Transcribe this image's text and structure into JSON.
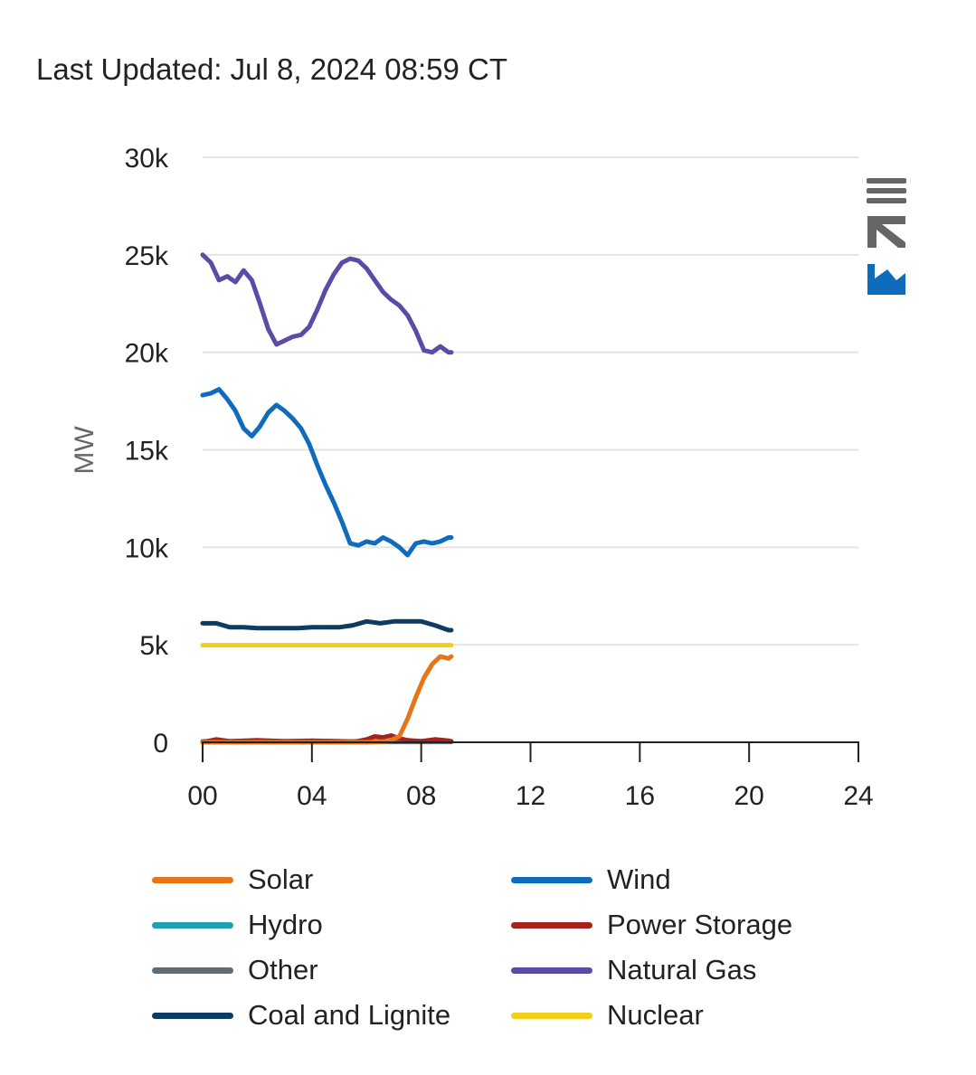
{
  "header": {
    "last_updated": "Last Updated: Jul 8, 2024 08:59 CT"
  },
  "colors": {
    "solar": "#e8741a",
    "wind": "#0f6cbd",
    "hydro": "#1fa0b4",
    "power_storage": "#a5231c",
    "other": "#5f6c75",
    "natural_gas": "#5b4ba6",
    "coal_and_lignite": "#0c3c62",
    "nuclear": "#f2cf1a",
    "logo_gray": "#666666",
    "logo_blue": "#0f6cbd"
  },
  "logo": {
    "icon": "ercot-logo-icon"
  },
  "chart_data": {
    "type": "line",
    "title": "",
    "xlabel": "",
    "ylabel": "MW",
    "xlim": [
      0,
      24
    ],
    "ylim": [
      0,
      30000
    ],
    "x_ticks": [
      "00",
      "04",
      "08",
      "12",
      "16",
      "20",
      "24"
    ],
    "y_ticks": [
      "0",
      "5k",
      "10k",
      "15k",
      "20k",
      "25k",
      "30k"
    ],
    "grid": true,
    "legend_position": "bottom",
    "series": [
      {
        "name": "Solar",
        "color_key": "solar",
        "x": [
          0,
          1,
          2,
          3,
          4,
          5,
          6,
          6.8,
          7.2,
          7.5,
          7.8,
          8.1,
          8.4,
          8.7,
          9.0,
          9.1
        ],
        "values": [
          0,
          0,
          0,
          0,
          0,
          0,
          0,
          50,
          300,
          1200,
          2300,
          3300,
          4000,
          4400,
          4300,
          4400
        ]
      },
      {
        "name": "Wind",
        "color_key": "wind",
        "x": [
          0,
          0.3,
          0.6,
          0.9,
          1.2,
          1.5,
          1.8,
          2.1,
          2.4,
          2.7,
          3.0,
          3.3,
          3.6,
          3.9,
          4.2,
          4.5,
          4.8,
          5.1,
          5.4,
          5.7,
          6.0,
          6.3,
          6.6,
          6.9,
          7.2,
          7.5,
          7.8,
          8.1,
          8.4,
          8.7,
          9.0,
          9.1
        ],
        "values": [
          17800,
          17900,
          18100,
          17600,
          17000,
          16100,
          15700,
          16200,
          16900,
          17300,
          17000,
          16600,
          16100,
          15300,
          14200,
          13200,
          12300,
          11300,
          10200,
          10100,
          10300,
          10200,
          10500,
          10300,
          10000,
          9600,
          10200,
          10300,
          10200,
          10300,
          10500,
          10500
        ]
      },
      {
        "name": "Hydro",
        "color_key": "hydro",
        "x": [
          0,
          3,
          6,
          9,
          9.1
        ],
        "values": [
          50,
          50,
          50,
          50,
          50
        ]
      },
      {
        "name": "Power Storage",
        "color_key": "power_storage",
        "x": [
          0,
          0.5,
          1,
          2,
          3,
          4,
          5,
          5.5,
          6,
          6.3,
          6.6,
          6.9,
          7.2,
          7.5,
          8,
          8.5,
          9,
          9.1
        ],
        "values": [
          0,
          150,
          50,
          100,
          50,
          80,
          50,
          0,
          150,
          300,
          250,
          350,
          200,
          100,
          50,
          150,
          80,
          50
        ]
      },
      {
        "name": "Other",
        "color_key": "other",
        "x": [
          0,
          3,
          6,
          9,
          9.1
        ],
        "values": [
          20,
          20,
          20,
          20,
          20
        ]
      },
      {
        "name": "Natural Gas",
        "color_key": "natural_gas",
        "x": [
          0,
          0.3,
          0.6,
          0.9,
          1.2,
          1.5,
          1.8,
          2.1,
          2.4,
          2.7,
          3.0,
          3.3,
          3.6,
          3.9,
          4.2,
          4.5,
          4.8,
          5.1,
          5.4,
          5.7,
          6.0,
          6.3,
          6.6,
          6.9,
          7.2,
          7.5,
          7.8,
          8.1,
          8.4,
          8.7,
          9.0,
          9.1
        ],
        "values": [
          25000,
          24600,
          23700,
          23900,
          23600,
          24200,
          23700,
          22500,
          21200,
          20400,
          20600,
          20800,
          20900,
          21300,
          22200,
          23200,
          24000,
          24600,
          24800,
          24700,
          24300,
          23700,
          23100,
          22700,
          22400,
          21900,
          21100,
          20100,
          20000,
          20300,
          20000,
          20000
        ]
      },
      {
        "name": "Coal and Lignite",
        "color_key": "coal_and_lignite",
        "x": [
          0,
          0.5,
          1,
          1.5,
          2,
          2.5,
          3,
          3.5,
          4,
          4.5,
          5,
          5.5,
          6,
          6.5,
          7,
          7.5,
          8,
          8.5,
          9,
          9.1
        ],
        "values": [
          6100,
          6100,
          5900,
          5900,
          5850,
          5850,
          5850,
          5850,
          5900,
          5900,
          5900,
          6000,
          6200,
          6100,
          6200,
          6200,
          6200,
          6000,
          5750,
          5750
        ]
      },
      {
        "name": "Nuclear",
        "color_key": "nuclear",
        "x": [
          0,
          3,
          6,
          9,
          9.1
        ],
        "values": [
          4980,
          4980,
          4980,
          4980,
          4980
        ]
      }
    ]
  }
}
